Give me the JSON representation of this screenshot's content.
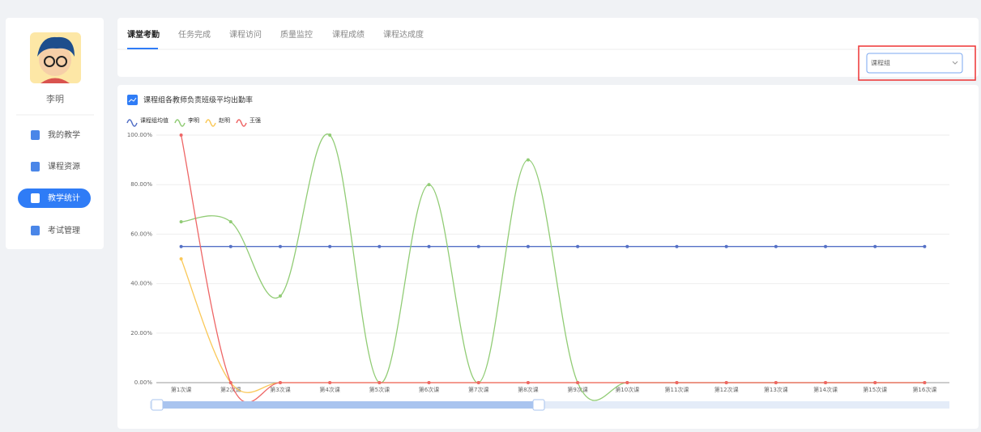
{
  "sidebar": {
    "name": "李明",
    "menu": [
      "我的教学",
      "课程资源",
      "教学统计",
      "考试管理"
    ]
  },
  "tabs": [
    "课堂考勤",
    "任务完成",
    "课程访问",
    "质量监控",
    "课程成绩",
    "课程达成度"
  ],
  "select": "课程组",
  "chart_data": {
    "type": "line",
    "title": "课程组各教师负责班级平均出勤率",
    "categories": [
      "第1次课",
      "第2次课",
      "第3次课",
      "第4次课",
      "第5次课",
      "第6次课",
      "第7次课",
      "第8次课",
      "第9次课",
      "第10次课",
      "第11次课",
      "第12次课",
      "第13次课",
      "第14次课",
      "第15次课",
      "第16次课"
    ],
    "ylim": [
      0,
      100
    ],
    "yticks": [
      {
        "value": 0,
        "label": "0.00%"
      },
      {
        "value": 20,
        "label": "20.00%"
      },
      {
        "value": 40,
        "label": "40.00%"
      },
      {
        "value": 60,
        "label": "60.00%"
      },
      {
        "value": 80,
        "label": "80.00%"
      },
      {
        "value": 100,
        "label": "100.00%"
      }
    ],
    "grid": true,
    "smooth": true,
    "series": [
      {
        "name": "课程组均值",
        "color": "#5470c6",
        "values": [
          55,
          55,
          55,
          55,
          55,
          55,
          55,
          55,
          55,
          55,
          55,
          55,
          55,
          55,
          55,
          55
        ]
      },
      {
        "name": "李明",
        "color": "#91cc75",
        "values": [
          65,
          65,
          35,
          100,
          0,
          80,
          0,
          90,
          0,
          0,
          0,
          0,
          0,
          0,
          0,
          0
        ]
      },
      {
        "name": "赵明",
        "color": "#fac858",
        "values": [
          50,
          0,
          0,
          0,
          0,
          0,
          0,
          0,
          0,
          0,
          0,
          0,
          0,
          0,
          0,
          0
        ]
      },
      {
        "name": "王强",
        "color": "#ee6666",
        "values": [
          100,
          0,
          0,
          0,
          0,
          0,
          0,
          0,
          0,
          0,
          0,
          0,
          0,
          0,
          0,
          0
        ]
      }
    ]
  }
}
